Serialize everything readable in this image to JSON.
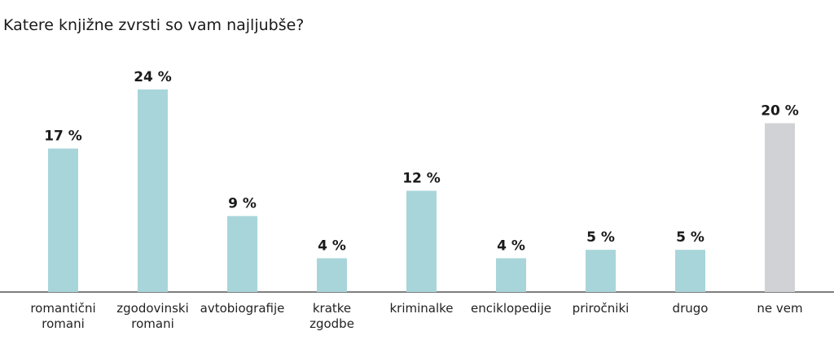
{
  "chart_data": {
    "type": "bar",
    "title": "Katere knjižne zvrsti so vam najljubše?",
    "xlabel": "",
    "ylabel": "",
    "ylim": [
      0,
      24
    ],
    "grid": false,
    "categories": [
      [
        "romantični",
        "romani"
      ],
      [
        "zgodovinski",
        "romani"
      ],
      [
        "avtobiografije"
      ],
      [
        "kratke",
        "zgodbe"
      ],
      [
        "kriminalke"
      ],
      [
        "enciklopedije"
      ],
      [
        "priročniki"
      ],
      [
        "drugo"
      ],
      [
        "ne vem"
      ]
    ],
    "values": [
      17,
      24,
      9,
      4,
      12,
      4,
      5,
      5,
      20
    ],
    "value_labels": [
      "17 %",
      "24 %",
      "9 %",
      "4 %",
      "12 %",
      "4 %",
      "5 %",
      "5 %",
      "20 %"
    ],
    "colors": [
      "#a8d5da",
      "#a8d5da",
      "#a8d5da",
      "#a8d5da",
      "#a8d5da",
      "#a8d5da",
      "#a8d5da",
      "#a8d5da",
      "#d0d2d5"
    ],
    "baseline_color": "#555555"
  }
}
